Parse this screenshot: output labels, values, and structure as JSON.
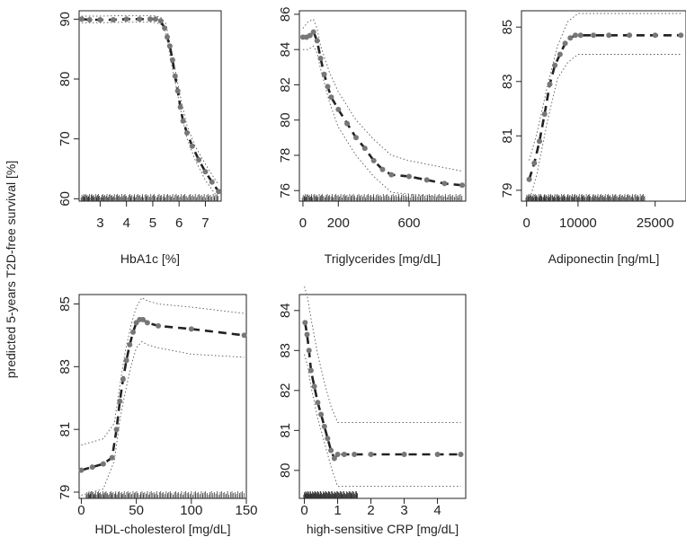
{
  "figure": {
    "shared_ylabel": "predicted 5-years T2D-free survival [%]"
  },
  "chart_data": [
    {
      "type": "line",
      "xlabel": "HbA1c [%]",
      "ylabel": "predicted 5-years T2D-free survival [%]",
      "xlim": [
        2.2,
        7.6
      ],
      "ylim": [
        59.6,
        91.4
      ],
      "xticks": [
        3,
        4,
        5,
        6,
        7
      ],
      "yticks": [
        60,
        70,
        80,
        90
      ],
      "series": [
        {
          "x": [
            2.3,
            2.6,
            3.0,
            3.5,
            4.0,
            4.5,
            4.9,
            5.1,
            5.3,
            5.45,
            5.55,
            5.65,
            5.75,
            5.85,
            5.95,
            6.05,
            6.15,
            6.3,
            6.5,
            6.75,
            7.0,
            7.25,
            7.5
          ],
          "y": [
            90.0,
            89.9,
            89.9,
            89.9,
            90.0,
            90.0,
            90.0,
            90.0,
            89.7,
            88.5,
            87.0,
            85.5,
            83.2,
            80.5,
            78.0,
            75.3,
            73.0,
            71.0,
            68.8,
            66.5,
            64.5,
            62.8,
            61.2
          ]
        },
        {
          "x": [
            2.3,
            3.0,
            4.0,
            5.0,
            5.3,
            5.5,
            5.7,
            5.9,
            6.1,
            6.3,
            6.6,
            7.0,
            7.5
          ],
          "y": [
            90.5,
            90.5,
            90.6,
            90.6,
            90.3,
            89.2,
            84.8,
            80.4,
            76.0,
            72.2,
            68.9,
            65.8,
            62.3
          ]
        },
        {
          "x": [
            2.3,
            3.0,
            4.0,
            5.0,
            5.3,
            5.5,
            5.7,
            5.9,
            6.1,
            6.3,
            6.6,
            7.0,
            7.5
          ],
          "y": [
            89.4,
            89.4,
            89.5,
            89.5,
            89.2,
            87.7,
            82.8,
            78.4,
            74.0,
            70.1,
            66.6,
            63.1,
            60.0
          ]
        }
      ],
      "rug_range": [
        2.3,
        7.5
      ]
    },
    {
      "type": "line",
      "xlabel": "Triglycerides [mg/dL]",
      "xlim": [
        -20,
        920
      ],
      "ylim": [
        75.4,
        86.2
      ],
      "xticks": [
        0,
        200,
        600
      ],
      "yticks": [
        76,
        78,
        80,
        82,
        84,
        86
      ],
      "series": [
        {
          "x": [
            0,
            20,
            40,
            60,
            80,
            100,
            120,
            140,
            160,
            200,
            250,
            300,
            350,
            400,
            450,
            500,
            600,
            700,
            800,
            900
          ],
          "y": [
            84.7,
            84.7,
            84.8,
            85.0,
            84.5,
            83.5,
            82.6,
            81.9,
            81.3,
            80.6,
            79.8,
            79.0,
            78.4,
            77.7,
            77.2,
            76.9,
            76.8,
            76.6,
            76.4,
            76.3
          ]
        },
        {
          "x": [
            0,
            30,
            60,
            80,
            100,
            150,
            200,
            300,
            400,
            500,
            600,
            700,
            800,
            900
          ],
          "y": [
            85.2,
            85.6,
            85.7,
            85.2,
            84.2,
            82.7,
            81.6,
            80.0,
            78.9,
            78.0,
            77.7,
            77.5,
            77.3,
            77.1
          ]
        },
        {
          "x": [
            0,
            30,
            60,
            80,
            100,
            150,
            200,
            300,
            400,
            500,
            600,
            700,
            800,
            900
          ],
          "y": [
            84.0,
            84.0,
            84.2,
            83.8,
            82.9,
            81.0,
            79.6,
            78.0,
            76.8,
            75.9,
            75.8,
            75.7,
            75.6,
            75.5
          ]
        }
      ],
      "rug_range": [
        0,
        900
      ]
    },
    {
      "type": "line",
      "xlabel": "Adiponectin [ng/mL]",
      "xlim": [
        -1000,
        31000
      ],
      "ylim": [
        78.6,
        85.6
      ],
      "xticks": [
        0,
        10000,
        25000
      ],
      "ytick_labels": [
        "79",
        "81",
        "83",
        "85"
      ],
      "yticks": [
        79,
        81,
        83,
        85
      ],
      "series": [
        {
          "x": [
            500,
            1500,
            2500,
            3500,
            4500,
            5500,
            6500,
            7500,
            8500,
            9500,
            10500,
            13000,
            16000,
            20000,
            25000,
            30000
          ],
          "y": [
            79.4,
            80.0,
            80.8,
            81.8,
            82.9,
            83.6,
            84.0,
            84.4,
            84.6,
            84.7,
            84.7,
            84.7,
            84.7,
            84.7,
            84.7,
            84.7
          ]
        },
        {
          "x": [
            500,
            2000,
            4000,
            6000,
            8000,
            10000,
            12000,
            16000,
            20000,
            25000,
            30000
          ],
          "y": [
            80.1,
            81.1,
            82.8,
            84.3,
            85.2,
            85.5,
            85.5,
            85.5,
            85.5,
            85.5,
            85.5
          ]
        },
        {
          "x": [
            500,
            2000,
            4000,
            6000,
            8000,
            10000,
            12000,
            16000,
            20000,
            25000,
            30000
          ],
          "y": [
            78.6,
            79.6,
            81.5,
            83.1,
            83.7,
            84.0,
            84.0,
            84.0,
            84.0,
            84.0,
            84.0
          ]
        }
      ],
      "rug_range": [
        0,
        23000
      ]
    },
    {
      "type": "line",
      "xlabel": "HDL-cholesterol [mg/dL]",
      "ylabel": "predicted 5-years T2D-free survival [%]",
      "xlim": [
        -2,
        150
      ],
      "ylim": [
        78.8,
        85.3
      ],
      "xticks": [
        0,
        50,
        100,
        150
      ],
      "yticks": [
        79,
        81,
        83,
        85
      ],
      "series": [
        {
          "x": [
            0,
            10,
            20,
            28,
            32,
            35,
            38,
            41,
            44,
            47,
            50,
            53,
            56,
            60,
            70,
            100,
            148
          ],
          "y": [
            79.7,
            79.8,
            79.9,
            80.1,
            81.0,
            81.9,
            82.6,
            83.2,
            83.7,
            84.1,
            84.4,
            84.5,
            84.5,
            84.4,
            84.3,
            84.2,
            84.0
          ]
        },
        {
          "x": [
            0,
            20,
            30,
            35,
            40,
            45,
            50,
            55,
            60,
            70,
            100,
            148
          ],
          "y": [
            80.5,
            80.7,
            81.2,
            82.4,
            83.5,
            84.3,
            84.9,
            85.2,
            85.1,
            85.0,
            84.9,
            84.7
          ]
        },
        {
          "x": [
            0,
            20,
            30,
            35,
            40,
            45,
            50,
            55,
            60,
            70,
            100,
            148
          ],
          "y": [
            78.9,
            79.1,
            80.0,
            81.3,
            82.2,
            83.0,
            83.6,
            83.8,
            83.7,
            83.6,
            83.4,
            83.3
          ]
        }
      ],
      "rug_range": [
        5,
        148
      ]
    },
    {
      "type": "line",
      "xlabel": "high-sensitive CRP [mg/dL]",
      "xlim": [
        -0.15,
        4.85
      ],
      "ylim": [
        79.3,
        84.4
      ],
      "xticks": [
        0,
        1,
        2,
        3,
        4
      ],
      "yticks": [
        80,
        81,
        82,
        83,
        84
      ],
      "series": [
        {
          "x": [
            0.02,
            0.08,
            0.14,
            0.2,
            0.3,
            0.4,
            0.5,
            0.6,
            0.7,
            0.8,
            0.9,
            1.0,
            1.2,
            1.5,
            2.0,
            3.0,
            4.0,
            4.7
          ],
          "y": [
            83.7,
            83.4,
            83.0,
            82.5,
            82.1,
            81.7,
            81.4,
            81.1,
            80.8,
            80.5,
            80.3,
            80.4,
            80.4,
            80.4,
            80.4,
            80.4,
            80.4,
            80.4
          ]
        },
        {
          "x": [
            0,
            0.1,
            0.2,
            0.4,
            0.6,
            0.8,
            1.0,
            1.5,
            2.0,
            3.0,
            4.0,
            4.7
          ],
          "y": [
            84.6,
            84.3,
            83.8,
            82.9,
            82.2,
            81.6,
            81.2,
            81.2,
            81.2,
            81.2,
            81.2,
            81.2
          ]
        },
        {
          "x": [
            0,
            0.1,
            0.2,
            0.4,
            0.6,
            0.8,
            1.0,
            1.5,
            2.0,
            3.0,
            4.0,
            4.7
          ],
          "y": [
            82.9,
            82.6,
            82.1,
            81.3,
            80.7,
            80.1,
            79.6,
            79.6,
            79.6,
            79.6,
            79.6,
            79.6
          ]
        }
      ],
      "rug_range": [
        0,
        1.6
      ]
    }
  ]
}
